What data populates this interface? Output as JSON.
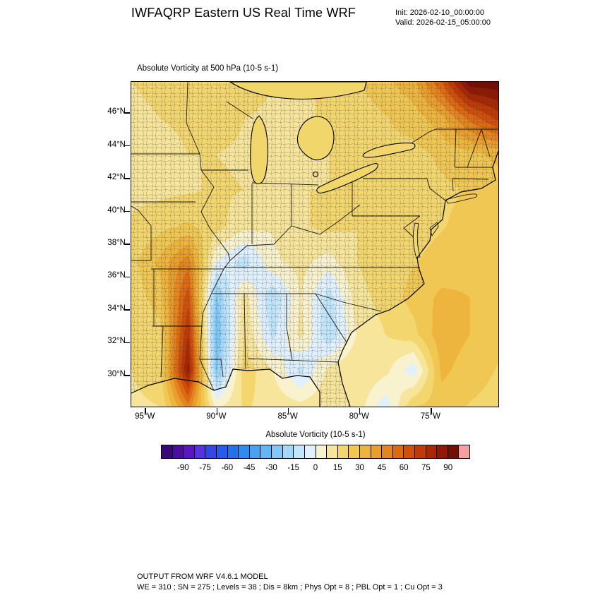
{
  "header": {
    "title": "IWFAQRP Eastern US Real Time WRF",
    "init_label": "Init: 2026-02-10_00:00:00",
    "valid_label": "Valid: 2026-02-15_05:00:00"
  },
  "plot": {
    "subtitle": "Absolute Vorticity at 500 hPa  (10-5 s-1)"
  },
  "axes": {
    "lat_ticks": [
      "46°N",
      "44°N",
      "42°N",
      "40°N",
      "38°N",
      "36°N",
      "34°N",
      "32°N",
      "30°N"
    ],
    "lat_values": [
      46,
      44,
      42,
      40,
      38,
      36,
      34,
      32,
      30
    ],
    "lon_ticks": [
      "95°W",
      "90°W",
      "85°W",
      "80°W",
      "75°W"
    ],
    "lon_values": [
      -95,
      -90,
      -85,
      -80,
      -75
    ]
  },
  "colorbar": {
    "title": "Absolute Vorticity  (10-5 s-1)",
    "min": -105,
    "max": 105,
    "step": 7.5,
    "tick_values": [
      -90,
      -75,
      -60,
      -45,
      -30,
      -15,
      0,
      15,
      30,
      45,
      60,
      75,
      90
    ],
    "colors": [
      "#3a0878",
      "#4b0d9e",
      "#5a17c0",
      "#5633de",
      "#3447e0",
      "#265ce8",
      "#2272ec",
      "#2f8bf0",
      "#47a2f2",
      "#63b6f5",
      "#82c8f7",
      "#a2d8fa",
      "#c2e6fb",
      "#e0f1fd",
      "#f9f2cf",
      "#f6e59a",
      "#f3d76e",
      "#f0c753",
      "#edb53e",
      "#e99f2d",
      "#e4861f",
      "#dc6a13",
      "#d0500b",
      "#bf3a06",
      "#a92803",
      "#8f1902",
      "#750d01",
      "#f4a0a0"
    ]
  },
  "footer": {
    "line1": "OUTPUT FROM WRF V4.6.1 MODEL",
    "line2": "WE = 310 ; SN = 275 ; Levels = 38 ; Dis = 8km ; Phys Opt = 8 ; PBL Opt = 1 ; Cu Opt = 3"
  },
  "chart_data": {
    "type": "heatmap",
    "title": "Absolute Vorticity at 500 hPa",
    "units": "10-5 s-1",
    "lon_range": [
      -96,
      -70.3
    ],
    "lat_range": [
      28.1,
      47.9
    ],
    "grid_lons": [
      -96,
      -94,
      -92,
      -90,
      -88,
      -86,
      -84,
      -82,
      -80,
      -78,
      -76,
      -74,
      -72,
      -70
    ],
    "grid_lats": [
      48,
      46,
      44,
      42,
      40,
      38,
      36,
      34,
      32,
      30
    ],
    "values": [
      [
        15,
        16,
        18,
        20,
        18,
        15,
        14,
        16,
        22,
        28,
        35,
        60,
        95,
        96
      ],
      [
        14,
        15,
        16,
        18,
        15,
        14,
        14,
        16,
        18,
        22,
        26,
        35,
        55,
        70
      ],
      [
        13,
        13,
        15,
        15,
        14,
        13,
        14,
        15,
        17,
        20,
        20,
        24,
        28,
        32
      ],
      [
        13,
        13,
        14,
        16,
        15,
        14,
        15,
        15,
        17,
        18,
        20,
        21,
        23,
        26
      ],
      [
        16,
        20,
        24,
        18,
        10,
        8,
        14,
        17,
        15,
        18,
        20,
        22,
        25,
        28
      ],
      [
        20,
        32,
        50,
        0,
        -12,
        6,
        10,
        4,
        15,
        20,
        22,
        25,
        28,
        30
      ],
      [
        18,
        26,
        65,
        -25,
        12,
        -15,
        8,
        -12,
        12,
        18,
        25,
        32,
        30,
        28
      ],
      [
        16,
        20,
        75,
        -30,
        15,
        -10,
        10,
        -15,
        8,
        15,
        20,
        35,
        30,
        25
      ],
      [
        15,
        18,
        85,
        -25,
        20,
        8,
        -10,
        10,
        15,
        10,
        -5,
        32,
        26,
        22
      ],
      [
        14,
        15,
        50,
        5,
        16,
        12,
        10,
        14,
        12,
        -5,
        22,
        26,
        22,
        20
      ]
    ]
  }
}
